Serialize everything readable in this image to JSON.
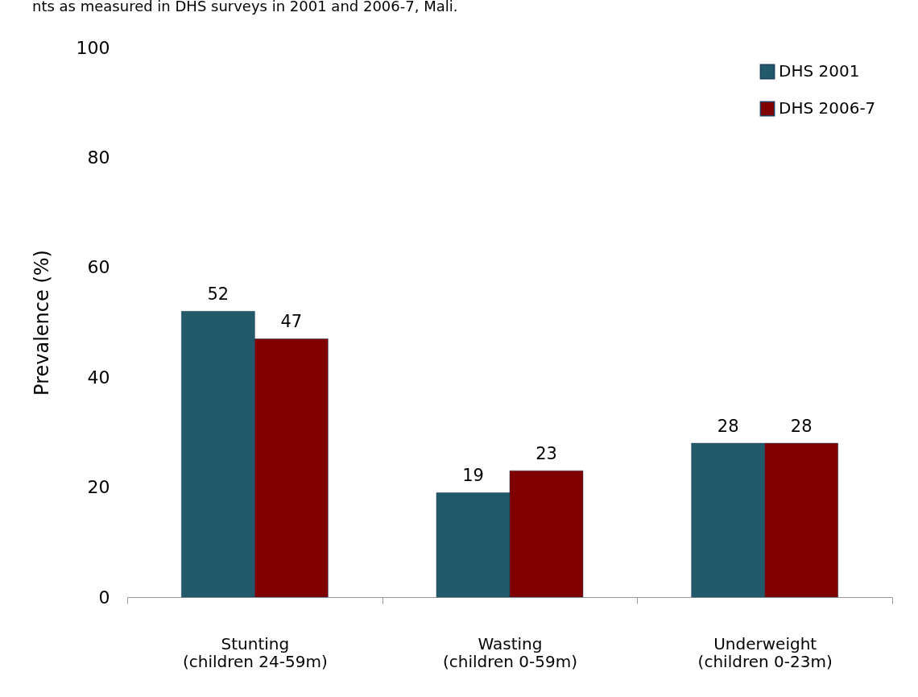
{
  "chart_data": {
    "type": "bar",
    "title": "nts as measured in DHS surveys in 2001 and 2006-7, Mali.",
    "ylabel": "Prevalence (%)",
    "categories": [
      "Stunting\n(children 24-59m)",
      "Wasting\n(children 0-59m)",
      "Underweight\n(children 0-23m)"
    ],
    "series": [
      {
        "name": "DHS 2001",
        "color": "#235a6a",
        "values": [
          52,
          19,
          28
        ]
      },
      {
        "name": "DHS 2006-7",
        "color": "#800000",
        "values": [
          47,
          23,
          28
        ]
      }
    ],
    "ylim": [
      0,
      100
    ],
    "yticks": [
      0,
      20,
      40,
      60,
      80,
      100
    ],
    "grid": false,
    "legend": "top right",
    "data_labels": true
  }
}
